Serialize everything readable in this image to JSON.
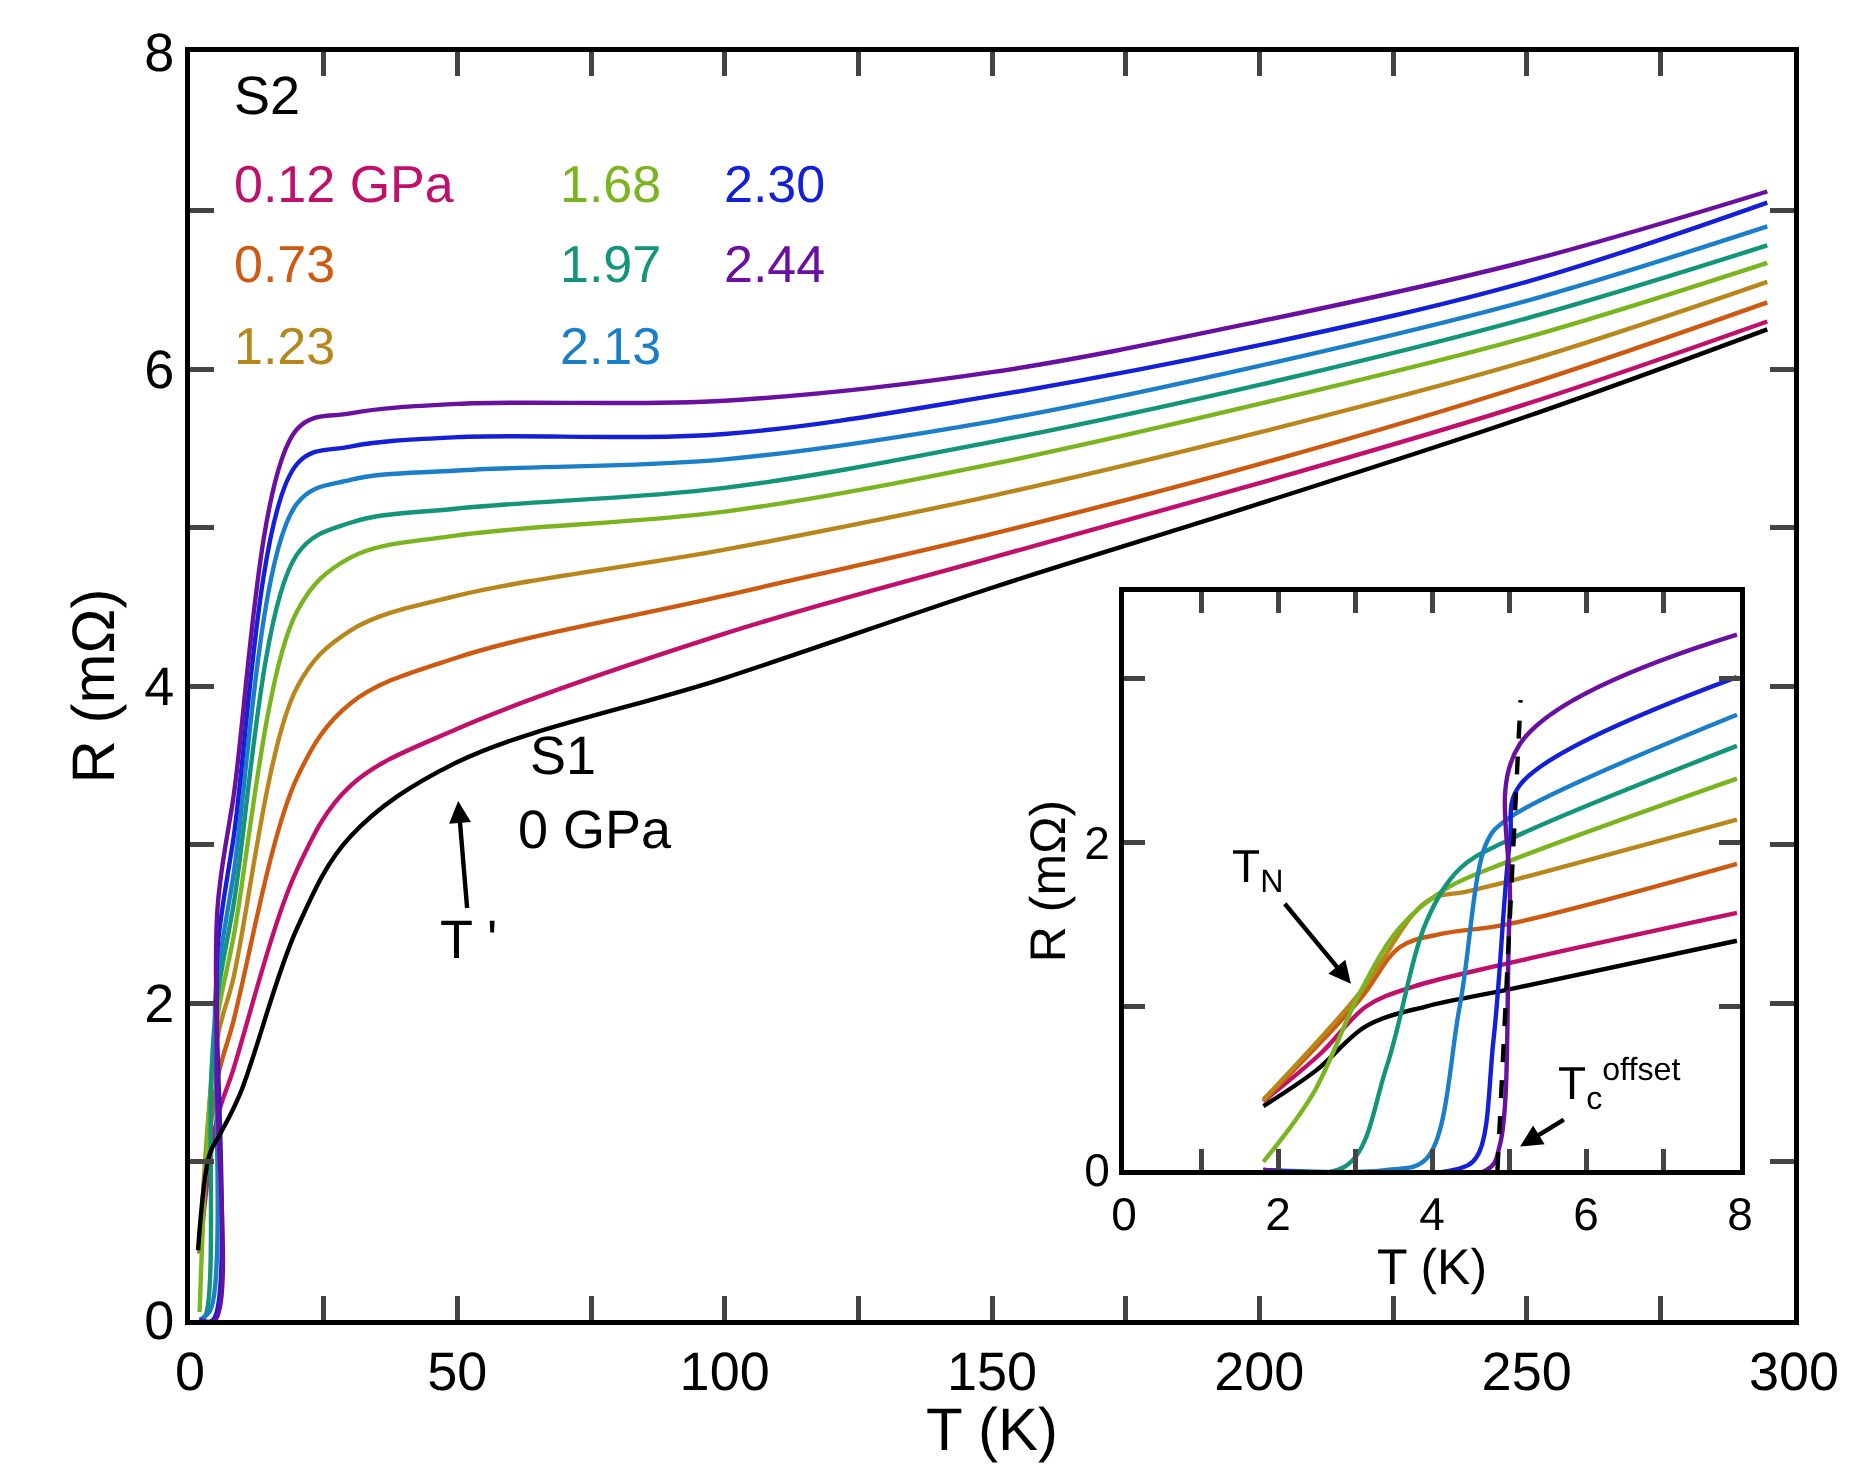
{
  "chart_data": [
    {
      "type": "line",
      "xlabel": "T (K)",
      "ylabel": "R (mΩ)",
      "xlim": [
        0,
        300
      ],
      "ylim": [
        0,
        8
      ],
      "xticks": [
        0,
        {
          "value": 25,
          "label": null
        },
        50,
        {
          "value": 75,
          "label": null
        },
        100,
        {
          "value": 125,
          "label": null
        },
        150,
        {
          "value": 175,
          "label": null
        },
        200,
        {
          "value": 225,
          "label": null
        },
        250,
        {
          "value": 275,
          "label": null
        },
        300
      ],
      "yticks": [
        0,
        {
          "value": 1,
          "label": null
        },
        2,
        {
          "value": 3,
          "label": null
        },
        4,
        {
          "value": 5,
          "label": null
        },
        6,
        {
          "value": 7,
          "label": null
        },
        8
      ],
      "annotations": [
        "S2",
        "S1",
        "0 GPa",
        "T '"
      ],
      "series": [
        {
          "name": "0.12 GPa",
          "color": "#c0106c",
          "x": [
            1.8,
            5,
            8,
            20,
            30,
            50,
            100,
            150,
            200,
            250,
            295
          ],
          "values": [
            0.42,
            1.26,
            1.57,
            2.84,
            3.37,
            3.73,
            4.33,
            4.81,
            5.28,
            5.78,
            6.3
          ]
        },
        {
          "name": "0.73",
          "color": "#cc5a10",
          "x": [
            1.8,
            5,
            8,
            20,
            30,
            50,
            100,
            150,
            200,
            250,
            295
          ],
          "values": [
            0.42,
            1.5,
            1.87,
            3.42,
            3.89,
            4.18,
            4.57,
            4.96,
            5.4,
            5.9,
            6.42
          ]
        },
        {
          "name": "1.23",
          "color": "#b8861a",
          "x": [
            1.8,
            5,
            8,
            20,
            30,
            50,
            100,
            150,
            200,
            250,
            295
          ],
          "values": [
            0.43,
            1.76,
            2.14,
            3.99,
            4.35,
            4.57,
            4.86,
            5.2,
            5.6,
            6.05,
            6.55
          ]
        },
        {
          "name": "1.68",
          "color": "#7ab520",
          "x": [
            1.8,
            3,
            5,
            8,
            20,
            30,
            50,
            100,
            150,
            200,
            250,
            295
          ],
          "values": [
            0.05,
            1.0,
            1.88,
            2.39,
            4.47,
            4.81,
            4.95,
            5.1,
            5.4,
            5.78,
            6.2,
            6.67
          ]
        },
        {
          "name": "1.97",
          "color": "#12957a",
          "x": [
            1.8,
            2.9,
            4,
            5,
            8,
            20,
            30,
            50,
            100,
            150,
            200,
            250,
            295
          ],
          "values": [
            0,
            0.03,
            1.55,
            2.01,
            2.59,
            4.83,
            5.03,
            5.12,
            5.25,
            5.54,
            5.9,
            6.32,
            6.78
          ]
        },
        {
          "name": "2.13",
          "color": "#1a7ec8",
          "x": [
            1.8,
            3.9,
            4.7,
            5,
            8,
            20,
            30,
            50,
            100,
            150,
            200,
            250,
            295
          ],
          "values": [
            0,
            0.07,
            2.0,
            2.14,
            2.78,
            5.15,
            5.3,
            5.36,
            5.43,
            5.67,
            6.02,
            6.43,
            6.9
          ]
        },
        {
          "name": "2.30",
          "color": "#1420d8",
          "x": [
            1.8,
            4.3,
            5.0,
            5.15,
            8,
            20,
            30,
            50,
            100,
            150,
            200,
            250,
            295
          ],
          "values": [
            0,
            0,
            2.0,
            2.35,
            3.01,
            5.4,
            5.51,
            5.57,
            5.59,
            5.83,
            6.15,
            6.55,
            7.05
          ]
        },
        {
          "name": "2.44",
          "color": "#6a10a0",
          "x": [
            1.8,
            4.7,
            5.0,
            5.15,
            8,
            20,
            30,
            50,
            100,
            150,
            200,
            250,
            295
          ],
          "values": [
            0,
            0,
            1.6,
            2.6,
            3.27,
            5.62,
            5.72,
            5.78,
            5.8,
            5.98,
            6.3,
            6.68,
            7.12
          ]
        },
        {
          "color": "#000000",
          "x": [
            1.5,
            3.7,
            5.6,
            9.4,
            20,
            30,
            50,
            100,
            150,
            200,
            250,
            295
          ],
          "values": [
            0.44,
            1.05,
            1.17,
            1.43,
            2.47,
            3.05,
            3.52,
            4.05,
            4.62,
            5.15,
            5.7,
            6.25
          ]
        }
      ]
    },
    {
      "type": "line",
      "xlabel": "T (K)",
      "ylabel": "R (mΩ)",
      "xlim": [
        0,
        8
      ],
      "ylim": [
        0,
        3.53
      ],
      "xticks": [
        0,
        {
          "value": 1,
          "label": null
        },
        2,
        {
          "value": 3,
          "label": null
        },
        4,
        {
          "value": 5,
          "label": null
        },
        6,
        {
          "value": 7,
          "label": null
        },
        8
      ],
      "yticks": [
        0,
        {
          "value": 1,
          "label": null
        },
        2,
        {
          "value": 3,
          "label": null
        }
      ],
      "annotations": [
        "T$_{N}$",
        "T$_{c}$$^{offset}$"
      ],
      "series": [
        {
          "color": "#000000",
          "x": [
            1.81,
            2.5,
            3.15,
            3.93,
            4.97,
            7.96
          ],
          "values": [
            0.39,
            0.61,
            0.88,
            1.0,
            1.1,
            1.4
          ]
        },
        {
          "color": "#c0106c",
          "x": [
            1.81,
            2.55,
            3.15,
            3.76,
            4.97,
            7.96
          ],
          "values": [
            0.42,
            0.71,
            1.0,
            1.12,
            1.26,
            1.57
          ]
        },
        {
          "color": "#cc5a10",
          "x": [
            1.81,
            3.06,
            3.58,
            4.1,
            4.97,
            7.96
          ],
          "values": [
            0.42,
            1.04,
            1.36,
            1.44,
            1.5,
            1.87
          ]
        },
        {
          "color": "#b8861a",
          "x": [
            1.81,
            3.06,
            3.93,
            4.45,
            4.97,
            7.96
          ],
          "values": [
            0.43,
            1.08,
            1.64,
            1.7,
            1.76,
            2.14
          ]
        },
        {
          "color": "#7ab520",
          "x": [
            1.81,
            2.46,
            3.06,
            3.58,
            4.19,
            4.97,
            7.96
          ],
          "values": [
            0.05,
            0.47,
            1.08,
            1.48,
            1.72,
            1.88,
            2.39
          ]
        },
        {
          "color": "#12957a",
          "x": [
            1.81,
            2.9,
            3.41,
            3.93,
            4.36,
            4.97,
            7.96
          ],
          "values": [
            0,
            0.03,
            0.63,
            1.52,
            1.84,
            2.01,
            2.59
          ]
        },
        {
          "color": "#1a7ec8",
          "x": [
            1.81,
            3.41,
            3.93,
            4.36,
            4.71,
            4.97,
            7.96
          ],
          "values": [
            0,
            0,
            0.07,
            1.0,
            2.0,
            2.14,
            2.78
          ]
        },
        {
          "color": "#1420d8",
          "x": [
            1.81,
            4.28,
            4.58,
            4.8,
            5.01,
            5.14,
            7.96
          ],
          "values": [
            0,
            0,
            0.08,
            0.8,
            2.0,
            2.35,
            3.01
          ]
        },
        {
          "color": "#6a10a0",
          "x": [
            1.81,
            4.71,
            4.88,
            5.01,
            5.14,
            7.96
          ],
          "values": [
            0,
            0,
            0.15,
            1.6,
            2.6,
            3.27
          ]
        },
        {
          "color": "#000000",
          "line_style": "dashed",
          "x": [
            4.85,
            5.15
          ],
          "values": [
            0,
            2.87
          ]
        }
      ]
    }
  ]
}
